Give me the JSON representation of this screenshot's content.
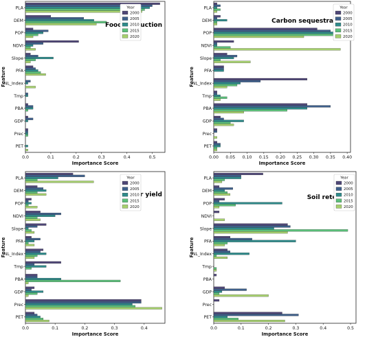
{
  "colors": {
    "2000": "#4f4777",
    "2005": "#3e5f8a",
    "2010": "#2f8a8a",
    "2015": "#5cbf7a",
    "2020": "#a6d06e"
  },
  "legend_title": "Year",
  "chart_data": [
    {
      "type": "bar",
      "orientation": "horizontal",
      "title": "Food production",
      "xlabel": "Importance Score",
      "ylabel": "Feature",
      "xlim": [
        0,
        0.55
      ],
      "xticks": [
        "0.0",
        "0.1",
        "0.2",
        "0.3",
        "0.4",
        "0.5"
      ],
      "legend_position": "top-right",
      "categories": [
        "PLA",
        "DEM",
        "POP",
        "NDVI",
        "Slope",
        "PFA",
        "NL_Index",
        "Tmp",
        "PBA",
        "GDP",
        "Prec",
        "PET"
      ],
      "series": [
        {
          "name": "2000",
          "values": [
            0.53,
            0.1,
            0.03,
            0.21,
            0.02,
            0.03,
            0.0,
            0.0,
            0.01,
            0.01,
            0.01,
            0.0
          ]
        },
        {
          "name": "2005",
          "values": [
            0.5,
            0.23,
            0.09,
            0.07,
            0.05,
            0.04,
            0.02,
            0.01,
            0.03,
            0.03,
            0.01,
            0.0
          ]
        },
        {
          "name": "2010",
          "values": [
            0.49,
            0.27,
            0.07,
            0.03,
            0.11,
            0.05,
            0.01,
            0.01,
            0.03,
            0.01,
            0.01,
            0.01
          ]
        },
        {
          "name": "2015",
          "values": [
            0.47,
            0.32,
            0.05,
            0.02,
            0.04,
            0.06,
            0.0,
            0.0,
            0.01,
            0.0,
            0.01,
            0.0
          ]
        },
        {
          "name": "2020",
          "values": [
            0.46,
            0.28,
            0.03,
            0.04,
            0.02,
            0.08,
            0.04,
            0.0,
            0.0,
            0.0,
            0.0,
            0.01
          ]
        }
      ]
    },
    {
      "type": "bar",
      "orientation": "horizontal",
      "title": "Carbon sequestration",
      "xlabel": "Importance Score",
      "ylabel": "Feature",
      "xlim": [
        0,
        0.41
      ],
      "xticks": [
        "0.00",
        "0.05",
        "0.10",
        "0.15",
        "0.20",
        "0.25",
        "0.30",
        "0.35",
        "0.40"
      ],
      "legend_position": "top-right",
      "categories": [
        "PLA",
        "DEM",
        "POP",
        "NDVI",
        "Slope",
        "PFA",
        "NL_Index",
        "Tmp",
        "PBA",
        "GDP",
        "Prec",
        "PET"
      ],
      "series": [
        {
          "name": "2000",
          "values": [
            0.01,
            0.02,
            0.31,
            0.06,
            0.04,
            0.03,
            0.28,
            0.01,
            0.28,
            0.02,
            0.01,
            0.01
          ]
        },
        {
          "name": "2005",
          "values": [
            0.02,
            0.01,
            0.35,
            0.01,
            0.07,
            0.03,
            0.14,
            0.01,
            0.35,
            0.03,
            0.01,
            0.02
          ]
        },
        {
          "name": "2010",
          "values": [
            0.01,
            0.04,
            0.4,
            0.01,
            0.06,
            0.03,
            0.08,
            0.02,
            0.28,
            0.09,
            0.0,
            0.02
          ]
        },
        {
          "name": "2015",
          "values": [
            0.02,
            0.01,
            0.4,
            0.05,
            0.02,
            0.0,
            0.07,
            0.04,
            0.22,
            0.05,
            0.0,
            0.01
          ]
        },
        {
          "name": "2020",
          "values": [
            0.01,
            0.01,
            0.27,
            0.38,
            0.11,
            0.0,
            0.04,
            0.02,
            0.09,
            0.06,
            0.01,
            0.01
          ]
        }
      ]
    },
    {
      "type": "bar",
      "orientation": "horizontal",
      "title": "Water yield",
      "xlabel": "Importance Score",
      "ylabel": "Feature",
      "xlim": [
        0,
        0.47
      ],
      "xticks": [
        "0.0",
        "0.1",
        "0.2",
        "0.3",
        "0.4"
      ],
      "legend_position": "top-right",
      "categories": [
        "PLA",
        "DEM",
        "POP",
        "NDVI",
        "Slope",
        "PFA",
        "NL_Index",
        "Tmp",
        "PBA",
        "GDP",
        "Prec",
        "PET"
      ],
      "series": [
        {
          "name": "2000",
          "values": [
            0.16,
            0.04,
            0.02,
            0.05,
            0.07,
            0.02,
            0.06,
            0.12,
            0.04,
            0.03,
            0.39,
            0.03
          ]
        },
        {
          "name": "2005",
          "values": [
            0.2,
            0.06,
            0.01,
            0.12,
            0.04,
            0.05,
            0.05,
            0.03,
            0.04,
            0.02,
            0.39,
            0.04
          ]
        },
        {
          "name": "2010",
          "values": [
            0.11,
            0.07,
            0.02,
            0.1,
            0.01,
            0.03,
            0.07,
            0.07,
            0.12,
            0.06,
            0.36,
            0.05
          ]
        },
        {
          "name": "2015",
          "values": [
            0.04,
            0.04,
            0.01,
            0.04,
            0.02,
            0.01,
            0.04,
            0.02,
            0.32,
            0.04,
            0.37,
            0.06
          ]
        },
        {
          "name": "2020",
          "values": [
            0.23,
            0.07,
            0.04,
            0.05,
            0.03,
            0.03,
            0.03,
            0.0,
            0.01,
            0.01,
            0.46,
            0.08
          ]
        }
      ]
    },
    {
      "type": "bar",
      "orientation": "horizontal",
      "title": "Soil retention",
      "xlabel": "Importance Score",
      "ylabel": "Feature",
      "xlim": [
        0,
        0.52
      ],
      "xticks": [
        "0.0",
        "0.1",
        "0.2",
        "0.3",
        "0.4",
        "0.5"
      ],
      "legend_position": "top-right",
      "categories": [
        "PLA",
        "DEM",
        "POP",
        "NDVI",
        "Slope",
        "PFA",
        "NL_Index",
        "Tmp",
        "PBA",
        "GDP",
        "Prec",
        "PET"
      ],
      "series": [
        {
          "name": "2000",
          "values": [
            0.18,
            0.02,
            0.04,
            0.02,
            0.27,
            0.06,
            0.05,
            0.0,
            0.01,
            0.04,
            0.02,
            0.25
          ]
        },
        {
          "name": "2005",
          "values": [
            0.1,
            0.07,
            0.02,
            0.0,
            0.28,
            0.14,
            0.06,
            0.0,
            0.0,
            0.12,
            0.0,
            0.31
          ]
        },
        {
          "name": "2010",
          "values": [
            0.1,
            0.04,
            0.25,
            0.0,
            0.22,
            0.3,
            0.13,
            0.0,
            0.0,
            0.03,
            0.0,
            0.05
          ]
        },
        {
          "name": "2015",
          "values": [
            0.04,
            0.05,
            0.08,
            0.0,
            0.49,
            0.05,
            0.01,
            0.01,
            0.0,
            0.02,
            0.0,
            0.09
          ]
        },
        {
          "name": "2020",
          "values": [
            0.03,
            0.06,
            0.02,
            0.04,
            0.27,
            0.04,
            0.05,
            0.01,
            0.0,
            0.2,
            0.0,
            0.26
          ]
        }
      ]
    }
  ]
}
